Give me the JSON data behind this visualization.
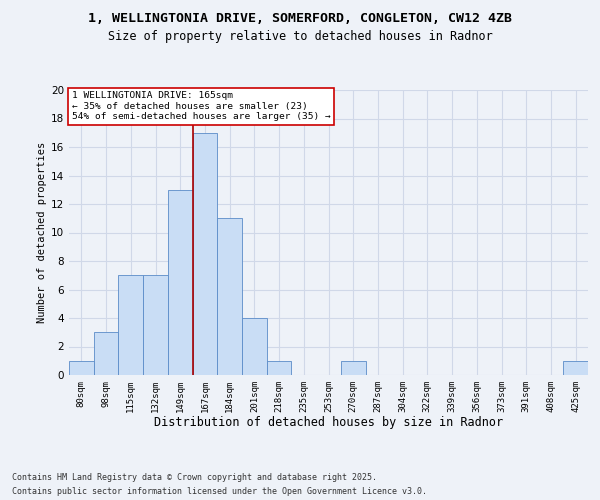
{
  "title_line1": "1, WELLINGTONIA DRIVE, SOMERFORD, CONGLETON, CW12 4ZB",
  "title_line2": "Size of property relative to detached houses in Radnor",
  "xlabel": "Distribution of detached houses by size in Radnor",
  "ylabel": "Number of detached properties",
  "footer_line1": "Contains HM Land Registry data © Crown copyright and database right 2025.",
  "footer_line2": "Contains public sector information licensed under the Open Government Licence v3.0.",
  "bin_labels": [
    "80sqm",
    "98sqm",
    "115sqm",
    "132sqm",
    "149sqm",
    "167sqm",
    "184sqm",
    "201sqm",
    "218sqm",
    "235sqm",
    "253sqm",
    "270sqm",
    "287sqm",
    "304sqm",
    "322sqm",
    "339sqm",
    "356sqm",
    "373sqm",
    "391sqm",
    "408sqm",
    "425sqm"
  ],
  "bar_values": [
    1,
    3,
    7,
    7,
    13,
    17,
    11,
    4,
    1,
    0,
    0,
    1,
    0,
    0,
    0,
    0,
    0,
    0,
    0,
    0,
    1
  ],
  "bar_color": "#c9ddf5",
  "bar_edge_color": "#5b8cc8",
  "annotation_line1": "1 WELLINGTONIA DRIVE: 165sqm",
  "annotation_line2": "← 35% of detached houses are smaller (23)",
  "annotation_line3": "54% of semi-detached houses are larger (35) →",
  "vline_index": 5,
  "vline_color": "#aa0000",
  "annotation_box_color": "#ffffff",
  "annotation_box_edge": "#cc0000",
  "ylim": [
    0,
    20
  ],
  "yticks": [
    0,
    2,
    4,
    6,
    8,
    10,
    12,
    14,
    16,
    18,
    20
  ],
  "grid_color": "#d0d8e8",
  "background_color": "#eef2f8"
}
